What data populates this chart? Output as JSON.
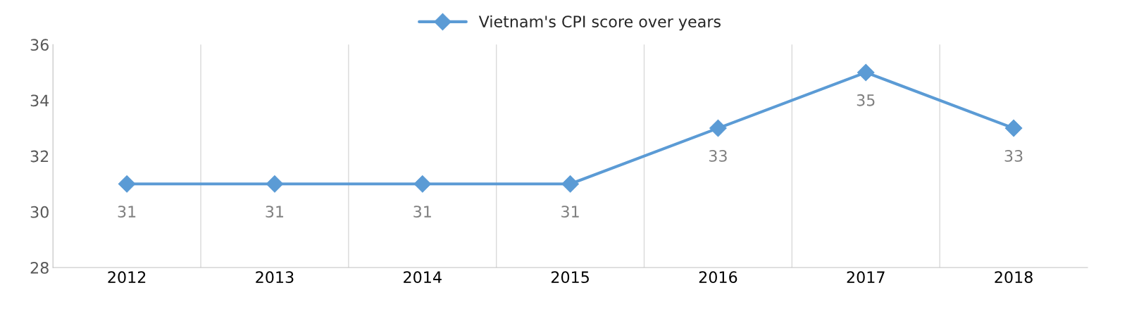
{
  "chart_data": {
    "type": "line",
    "categories": [
      "2012",
      "2013",
      "2014",
      "2015",
      "2016",
      "2017",
      "2018"
    ],
    "series": [
      {
        "name": "Vietnam's CPI score over years",
        "color": "#5b9bd5",
        "values": [
          31,
          31,
          31,
          31,
          33,
          35,
          33
        ]
      }
    ],
    "ylim": [
      28,
      36
    ],
    "yticks": [
      28,
      30,
      32,
      34,
      36
    ],
    "grid": "x",
    "legend": "top",
    "marker": "diamond",
    "line_style": "solid",
    "data_labels": true
  }
}
